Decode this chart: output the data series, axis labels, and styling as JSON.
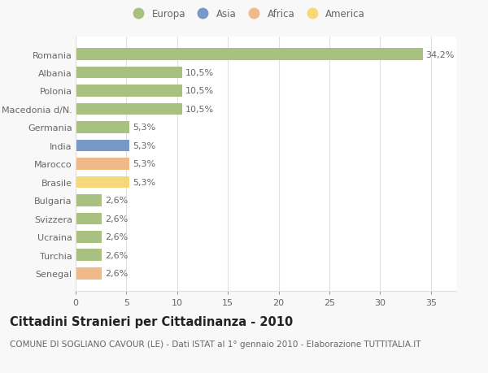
{
  "categories": [
    "Senegal",
    "Turchia",
    "Ucraina",
    "Svizzera",
    "Bulgaria",
    "Brasile",
    "Marocco",
    "India",
    "Germania",
    "Macedonia d/N.",
    "Polonia",
    "Albania",
    "Romania"
  ],
  "values": [
    2.6,
    2.6,
    2.6,
    2.6,
    2.6,
    5.3,
    5.3,
    5.3,
    5.3,
    10.5,
    10.5,
    10.5,
    34.2
  ],
  "labels": [
    "2,6%",
    "2,6%",
    "2,6%",
    "2,6%",
    "2,6%",
    "5,3%",
    "5,3%",
    "5,3%",
    "5,3%",
    "10,5%",
    "10,5%",
    "10,5%",
    "34,2%"
  ],
  "colors": [
    "#f0b98a",
    "#a8c080",
    "#a8c080",
    "#a8c080",
    "#a8c080",
    "#f5d87a",
    "#f0b98a",
    "#7898c8",
    "#a8c080",
    "#a8c080",
    "#a8c080",
    "#a8c080",
    "#a8c080"
  ],
  "legend_labels": [
    "Europa",
    "Asia",
    "Africa",
    "America"
  ],
  "legend_colors": [
    "#a8c080",
    "#7898c8",
    "#f0b98a",
    "#f5d87a"
  ],
  "title": "Cittadini Stranieri per Cittadinanza - 2010",
  "subtitle": "COMUNE DI SOGLIANO CAVOUR (LE) - Dati ISTAT al 1° gennaio 2010 - Elaborazione TUTTITALIA.IT",
  "xlim": [
    0,
    37.5
  ],
  "xticks": [
    0,
    5,
    10,
    15,
    20,
    25,
    30,
    35
  ],
  "bg_color": "#f8f8f8",
  "plot_bg_color": "#ffffff",
  "grid_color": "#e0e0e0",
  "text_color": "#666666",
  "title_color": "#222222",
  "title_fontsize": 10.5,
  "subtitle_fontsize": 7.5,
  "label_fontsize": 8,
  "tick_fontsize": 8,
  "legend_fontsize": 8.5
}
